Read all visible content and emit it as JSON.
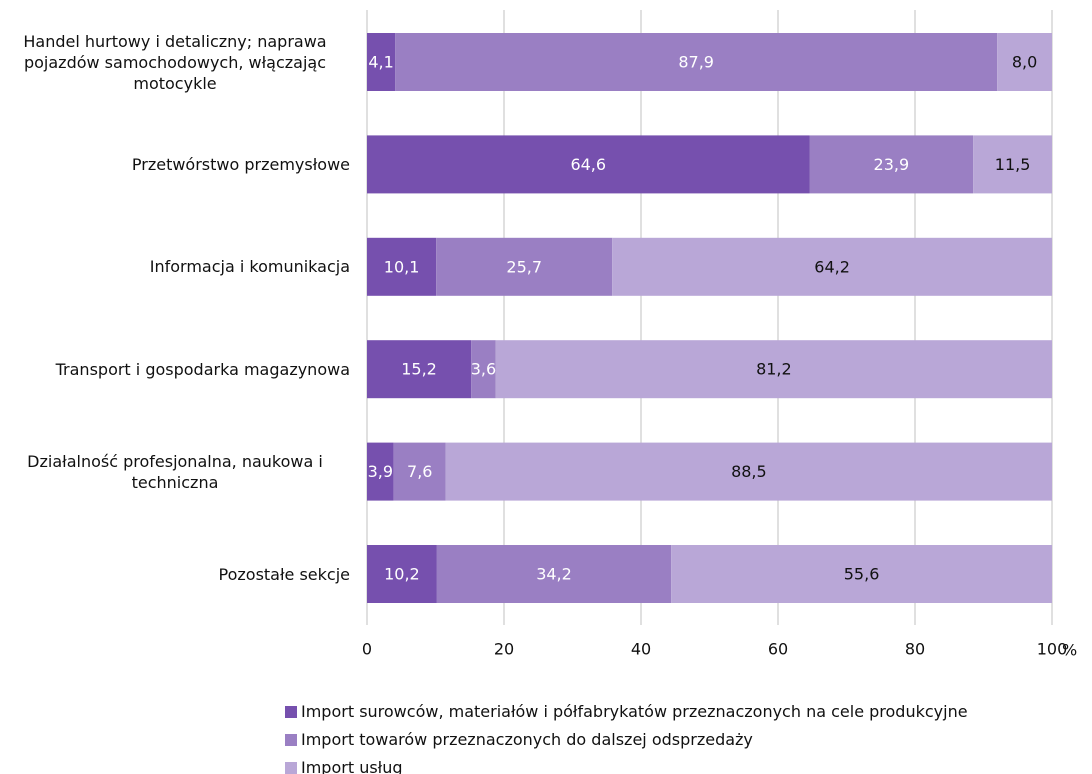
{
  "chart_data": {
    "type": "stacked_barh",
    "categories": [
      "Handel hurtowy i detaliczny; naprawa pojazdów samochodowych, włączając motocykle",
      "Przetwórstwo przemysłowe",
      "Informacja i komunikacja",
      "Transport i gospodarka magazynowa",
      "Działalność profesjonalna, naukowa i techniczna",
      "Pozostałe sekcje"
    ],
    "series": [
      {
        "name": "Import surowców, materiałów i półfabrykatów przeznaczonych na cele produkcyjne",
        "color": "#7650ae",
        "values": [
          4.1,
          64.6,
          10.1,
          15.2,
          3.9,
          10.2
        ],
        "value_labels": [
          "4,1",
          "64,6",
          "10,1",
          "15,2",
          "3,9",
          "10,2"
        ]
      },
      {
        "name": "Import towarów przeznaczonych do dalszej odsprzedaży",
        "color": "#9a7fc3",
        "values": [
          87.9,
          23.9,
          25.7,
          3.6,
          7.6,
          34.2
        ],
        "value_labels": [
          "87,9",
          "23,9",
          "25,7",
          "3,6",
          "7,6",
          "34,2"
        ]
      },
      {
        "name": "Import usług",
        "color": "#b9a7d7",
        "values": [
          8.0,
          11.5,
          64.2,
          81.2,
          88.5,
          55.6
        ],
        "value_labels": [
          "8,0",
          "11,5",
          "64,2",
          "81,2",
          "88,5",
          "55,6"
        ]
      }
    ],
    "xlim": [
      0,
      100
    ],
    "xticks": [
      0,
      20,
      40,
      60,
      80,
      100
    ],
    "x_unit": "%",
    "grid": true,
    "legend": "bottom"
  }
}
